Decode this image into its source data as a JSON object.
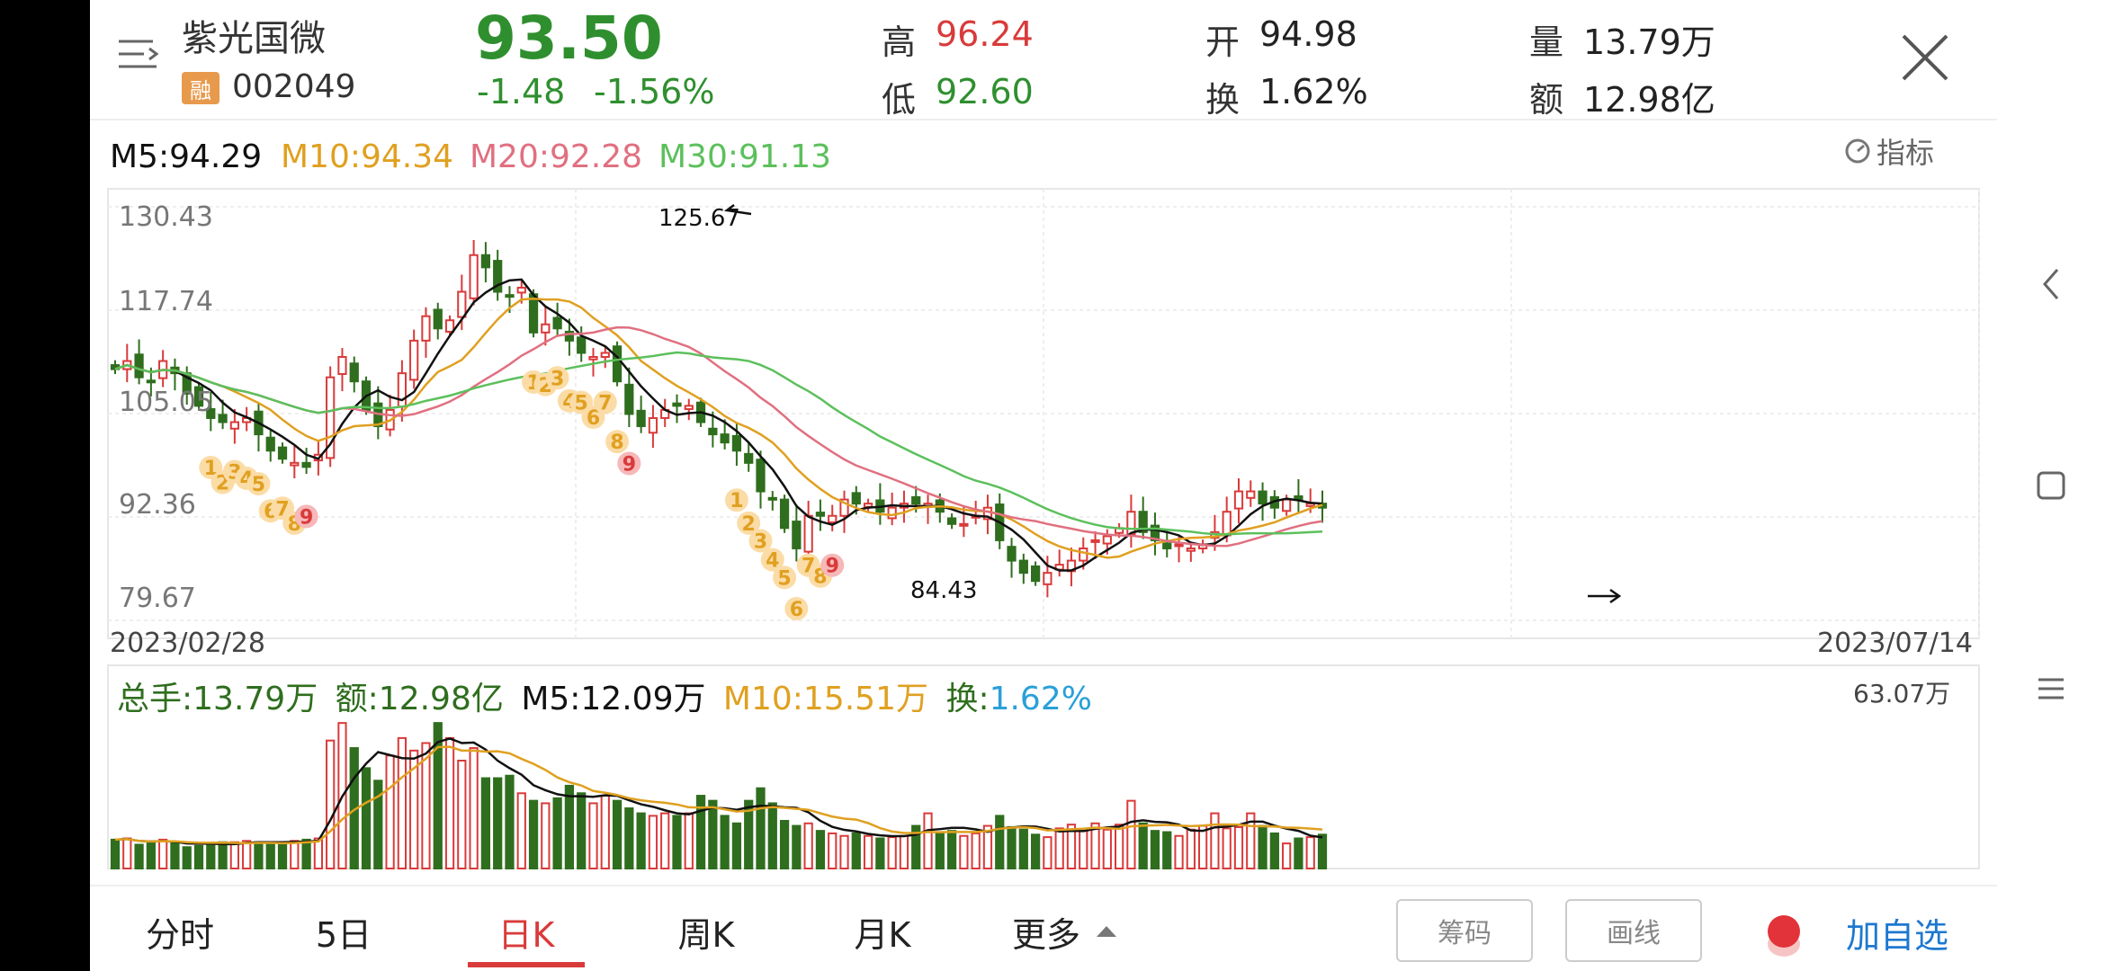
{
  "stock": {
    "name": "紫光国微",
    "margin_badge": "融",
    "code": "002049",
    "price": "93.50",
    "change": "-1.48",
    "change_pct": "-1.56%"
  },
  "quote": {
    "high_label": "高",
    "high": "96.24",
    "low_label": "低",
    "low": "92.60",
    "open_label": "开",
    "open": "94.98",
    "turnover_label": "换",
    "turnover": "1.62%",
    "volume_label": "量",
    "volume": "13.79万",
    "amount_label": "额",
    "amount": "12.98亿"
  },
  "ma_legend": {
    "m5": "M5:94.29",
    "m10": "M10:94.34",
    "m20": "M20:92.28",
    "m30": "M30:91.13",
    "indicator_label": "指标"
  },
  "axis": {
    "y_ticks": [
      "130.43",
      "117.74",
      "105.05",
      "92.36",
      "79.67"
    ],
    "date_start": "2023/02/28",
    "date_end": "2023/07/14",
    "max_label": "125.67",
    "min_label": "84.43"
  },
  "vol_legend": {
    "total": "总手:13.79万",
    "amount": "额:12.98亿",
    "m5": "M5:12.09万",
    "m10": "M10:15.51万",
    "turnover_label": "换:",
    "turnover": "1.62%",
    "max": "63.07万"
  },
  "tabs": [
    "分时",
    "5日",
    "日K",
    "周K",
    "月K",
    "更多"
  ],
  "buttons": {
    "chips": "筹码",
    "draw": "画线",
    "add_watch": "加自选"
  },
  "td_labels": [
    "1",
    "2",
    "3",
    "4",
    "5",
    "6",
    "7",
    "8",
    "9",
    "1",
    "2",
    "3",
    "4",
    "5",
    "6",
    "7",
    "8",
    "9",
    "1",
    "2",
    "3",
    "4",
    "5",
    "6",
    "7",
    "8",
    "9"
  ],
  "colors": {
    "up": "#d93a3a",
    "down": "#2f6e1e",
    "m5": "#111111",
    "m10": "#e0a020",
    "m20": "#e07080",
    "m30": "#5cc05c",
    "accent": "#d93a3a",
    "link": "#1e78d0"
  },
  "chart_data": {
    "type": "candlestick",
    "x_start": "2023/02/28",
    "x_end": "2023/07/14",
    "ylim": [
      79.67,
      130.43
    ],
    "y_ticks": [
      130.43,
      117.74,
      105.05,
      92.36,
      79.67
    ],
    "close": [
      110.5,
      111.5,
      109.5,
      109.0,
      111.5,
      110.0,
      107.5,
      106.0,
      104.5,
      104.0,
      104.0,
      104.5,
      102.5,
      100.5,
      99.5,
      99.0,
      98.5,
      100.0,
      109.5,
      112.0,
      109.0,
      105.5,
      103.5,
      105.5,
      110.0,
      114.0,
      117.0,
      115.5,
      116.5,
      120.0,
      124.5,
      123.0,
      120.0,
      119.5,
      120.5,
      115.0,
      116.0,
      115.5,
      114.0,
      112.5,
      112.0,
      112.5,
      109.0,
      105.0,
      103.5,
      104.5,
      105.5,
      106.0,
      106.0,
      104.0,
      102.5,
      101.5,
      100.5,
      99.0,
      95.5,
      94.5,
      91.0,
      88.5,
      92.5,
      92.5,
      92.5,
      94.5,
      94.0,
      94.0,
      93.0,
      93.5,
      94.0,
      94.0,
      94.0,
      93.0,
      91.5,
      91.5,
      92.5,
      93.5,
      89.5,
      87.0,
      85.5,
      84.5,
      85.5,
      86.5,
      87.0,
      88.5,
      89.5,
      90.0,
      91.0,
      93.0,
      90.5,
      89.5,
      88.5,
      89.0,
      88.5,
      89.0,
      90.5,
      93.0,
      95.5,
      95.5,
      94.0,
      93.5,
      94.5,
      94.5,
      94.0,
      93.5
    ],
    "volume_max": 63.07,
    "volume": [
      11.5,
      12.0,
      9.5,
      10.0,
      11.5,
      10.5,
      8.5,
      9.0,
      10.0,
      10.5,
      10.5,
      11.0,
      10.5,
      10.0,
      10.5,
      11.0,
      11.5,
      12.0,
      51.0,
      58.0,
      48.0,
      40.0,
      35.0,
      45.0,
      52.0,
      47.0,
      50.0,
      58.0,
      52.0,
      43.0,
      48.0,
      36.0,
      36.0,
      37.0,
      30.0,
      27.0,
      26.0,
      28.0,
      33.0,
      30.0,
      26.0,
      29.0,
      27.0,
      24.0,
      22.0,
      21.0,
      22.0,
      21.0,
      22.0,
      29.0,
      27.0,
      21.0,
      18.0,
      27.0,
      32.0,
      26.0,
      19.0,
      17.0,
      18.0,
      15.0,
      14.0,
      13.0,
      14.0,
      13.0,
      12.0,
      12.5,
      13.0,
      17.0,
      22.0,
      14.0,
      15.0,
      13.0,
      14.0,
      17.0,
      21.0,
      16.5,
      15.5,
      13.5,
      12.5,
      16.0,
      17.5,
      15.0,
      18.0,
      15.5,
      17.5,
      27.0,
      18.0,
      15.0,
      14.5,
      13.0,
      15.5,
      17.0,
      22.0,
      16.0,
      16.5,
      22.0,
      17.0,
      14.0,
      10.0,
      12.0,
      12.5,
      13.5
    ]
  }
}
